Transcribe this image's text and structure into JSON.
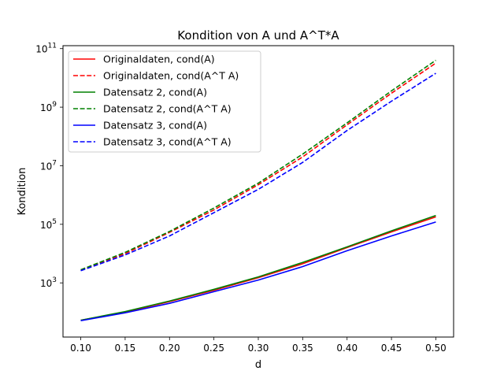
{
  "chart_data": {
    "type": "line",
    "title": "Kondition von A und A^T*A",
    "xlabel": "d",
    "ylabel": "Kondition",
    "xlim": [
      0.08,
      0.52
    ],
    "ylim_log10": [
      1.15,
      11.1
    ],
    "yscale": "log",
    "grid": false,
    "legend_position": "top-left",
    "xticks": [
      0.1,
      0.15,
      0.2,
      0.25,
      0.3,
      0.35,
      0.4,
      0.45,
      0.5
    ],
    "xtick_labels": [
      "0.10",
      "0.15",
      "0.20",
      "0.25",
      "0.30",
      "0.35",
      "0.40",
      "0.45",
      "0.50"
    ],
    "yticks_exponent": [
      3,
      5,
      7,
      9,
      11
    ],
    "yticks_base": "10",
    "x": [
      0.1,
      0.15,
      0.2,
      0.25,
      0.3,
      0.35,
      0.4,
      0.45,
      0.5
    ],
    "series": [
      {
        "name": "Originaldaten, cond(A)",
        "color": "#ff0000",
        "dash": false,
        "values": [
          53,
          100,
          230,
          560,
          1500,
          4500,
          16000,
          55000,
          180000
        ]
      },
      {
        "name": "Originaldaten, cond(A^T A)",
        "color": "#ff0000",
        "dash": true,
        "values": [
          2800,
          10000,
          53000,
          310000,
          2250000,
          20000000,
          250000000,
          3000000000,
          32000000000
        ]
      },
      {
        "name": "Datensatz 2, cond(A)",
        "color": "#008000",
        "dash": false,
        "values": [
          53,
          105,
          240,
          600,
          1600,
          5000,
          17000,
          60000,
          200000
        ]
      },
      {
        "name": "Datensatz 2, cond(A^T A)",
        "color": "#008000",
        "dash": true,
        "values": [
          2800,
          11000,
          57000,
          360000,
          2550000,
          25000000,
          290000000,
          3600000000,
          40000000000
        ]
      },
      {
        "name": "Datensatz 3, cond(A)",
        "color": "#0000ff",
        "dash": false,
        "values": [
          51,
          95,
          200,
          500,
          1250,
          3600,
          12500,
          40000,
          120000
        ]
      },
      {
        "name": "Datensatz 3, cond(A^T A)",
        "color": "#0000ff",
        "dash": true,
        "values": [
          2600,
          9000,
          40000,
          250000,
          1560000,
          13000000,
          160000000,
          1600000000,
          14400000000
        ]
      }
    ]
  }
}
